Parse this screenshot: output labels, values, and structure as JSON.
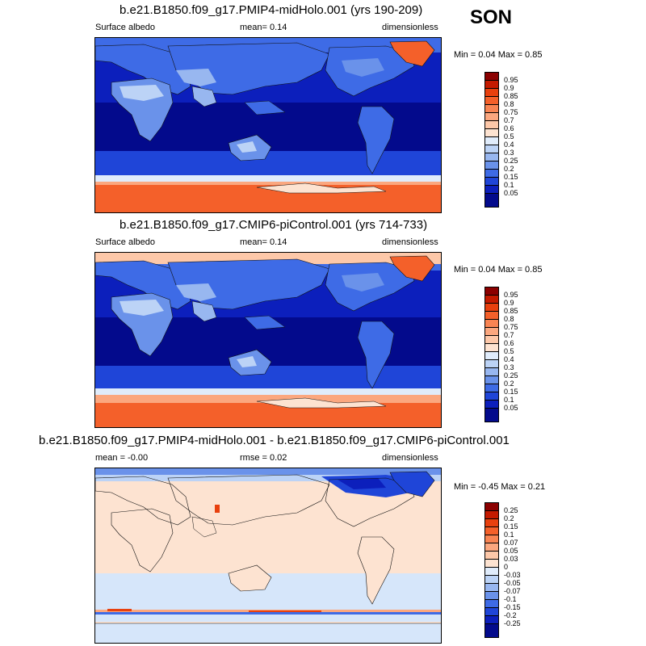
{
  "season": "SON",
  "panels": [
    {
      "title": "b.e21.B1850.f09_g17.PMIP4-midHolo.001 (yrs 190-209)",
      "left_label": "Surface albedo",
      "mid_label": "mean=   0.14",
      "right_label": "dimensionless",
      "minmax": "Min =   0.04 Max =   0.85",
      "colorbar": {
        "labels": [
          "0.95",
          "0.9",
          "0.85",
          "0.8",
          "0.75",
          "0.7",
          "0.6",
          "0.5",
          "0.4",
          "0.3",
          "0.25",
          "0.2",
          "0.15",
          "0.1",
          "0.05"
        ],
        "colors": [
          "#8b0000",
          "#c41a00",
          "#e8400e",
          "#f4602a",
          "#f88453",
          "#fba77f",
          "#fdc8a9",
          "#fde3d1",
          "#e0ecfb",
          "#bcd3f6",
          "#98b7f0",
          "#6a92ea",
          "#3e6be6",
          "#1f45d8",
          "#0c1fbc",
          "#030a8c"
        ]
      }
    },
    {
      "title": "b.e21.B1850.f09_g17.CMIP6-piControl.001 (yrs 714-733)",
      "left_label": "Surface albedo",
      "mid_label": "mean=   0.14",
      "right_label": "dimensionless",
      "minmax": "Min =   0.04 Max =   0.85",
      "colorbar": {
        "labels": [
          "0.95",
          "0.9",
          "0.85",
          "0.8",
          "0.75",
          "0.7",
          "0.6",
          "0.5",
          "0.4",
          "0.3",
          "0.25",
          "0.2",
          "0.15",
          "0.1",
          "0.05"
        ],
        "colors": [
          "#8b0000",
          "#c41a00",
          "#e8400e",
          "#f4602a",
          "#f88453",
          "#fba77f",
          "#fdc8a9",
          "#fde3d1",
          "#e0ecfb",
          "#bcd3f6",
          "#98b7f0",
          "#6a92ea",
          "#3e6be6",
          "#1f45d8",
          "#0c1fbc",
          "#030a8c"
        ]
      }
    },
    {
      "title": "b.e21.B1850.f09_g17.PMIP4-midHolo.001 - b.e21.B1850.f09_g17.CMIP6-piControl.001",
      "left_label": "mean =   -0.00",
      "mid_label": "rmse =   0.02",
      "right_label": "dimensionless",
      "minmax": "Min =  -0.45 Max =   0.21",
      "colorbar": {
        "labels": [
          "0.25",
          "0.2",
          "0.15",
          "0.1",
          "0.07",
          "0.05",
          "0.03",
          "0",
          "-0.03",
          "-0.05",
          "-0.07",
          "-0.1",
          "-0.15",
          "-0.2",
          "-0.25"
        ],
        "colors": [
          "#8b0000",
          "#c41a00",
          "#e8400e",
          "#f4602a",
          "#f88453",
          "#fba77f",
          "#fdc8a9",
          "#fde3d1",
          "#e0ecfb",
          "#bcd3f6",
          "#98b7f0",
          "#6a92ea",
          "#3e6be6",
          "#1f45d8",
          "#0c1fbc",
          "#030a8c"
        ]
      }
    }
  ],
  "colors": {
    "ocean_deep": "#030a8c",
    "ocean_mid": "#0c1fbc",
    "land_blue": "#3e6be6",
    "desert": "#98b7f0",
    "ice_orange": "#f4602a",
    "ice_light": "#fde3d1",
    "diff_neg": "#d6e6fa",
    "diff_pos": "#fde3d1",
    "diff_strong_neg": "#1f45d8",
    "diff_strong_pos": "#e8400e"
  }
}
